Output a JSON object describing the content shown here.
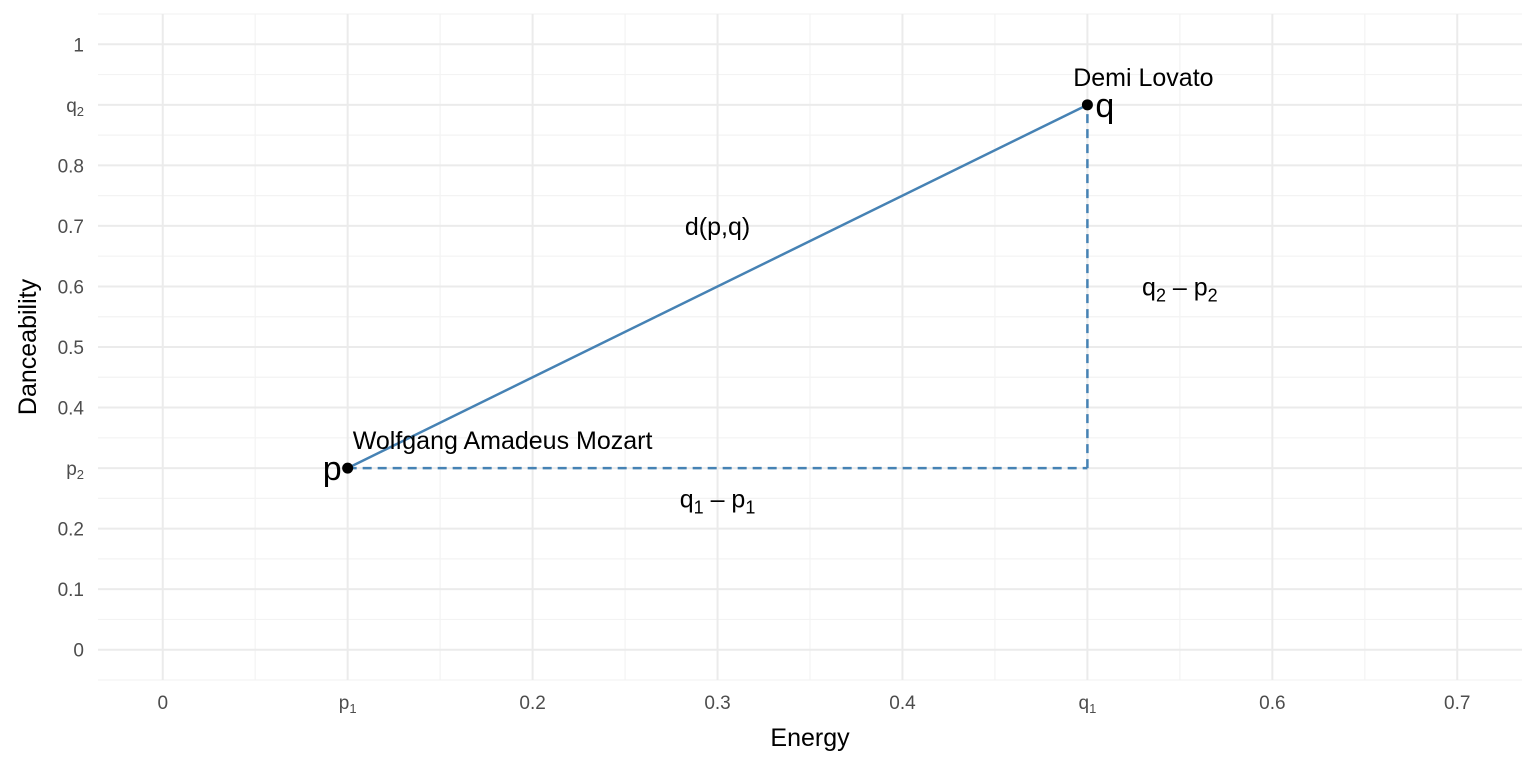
{
  "chart_data": {
    "type": "scatter",
    "title": "",
    "xlabel": "Energy",
    "ylabel": "Danceability",
    "xlim": [
      -0.035,
      0.735
    ],
    "ylim": [
      -0.05,
      1.05
    ],
    "grid": true,
    "x_ticks": [
      {
        "value": 0,
        "label": "0"
      },
      {
        "value": 0.1,
        "label": "p",
        "sub": "1"
      },
      {
        "value": 0.2,
        "label": "0.2"
      },
      {
        "value": 0.3,
        "label": "0.3"
      },
      {
        "value": 0.4,
        "label": "0.4"
      },
      {
        "value": 0.5,
        "label": "q",
        "sub": "1"
      },
      {
        "value": 0.6,
        "label": "0.6"
      },
      {
        "value": 0.7,
        "label": "0.7"
      }
    ],
    "y_ticks": [
      {
        "value": 0,
        "label": "0"
      },
      {
        "value": 0.1,
        "label": "0.1"
      },
      {
        "value": 0.2,
        "label": "0.2"
      },
      {
        "value": 0.3,
        "label": "p",
        "sub": "2"
      },
      {
        "value": 0.4,
        "label": "0.4"
      },
      {
        "value": 0.5,
        "label": "0.5"
      },
      {
        "value": 0.6,
        "label": "0.6"
      },
      {
        "value": 0.7,
        "label": "0.7"
      },
      {
        "value": 0.8,
        "label": "0.8"
      },
      {
        "value": 0.9,
        "label": "q",
        "sub": "2"
      },
      {
        "value": 1,
        "label": "1"
      }
    ],
    "points": [
      {
        "id": "p",
        "label": "p",
        "name": "Wolfgang Amadeus Mozart",
        "x": 0.1,
        "y": 0.3
      },
      {
        "id": "q",
        "label": "q",
        "name": "Demi Lovato",
        "x": 0.5,
        "y": 0.9
      }
    ],
    "line_color": "#4682b4",
    "point_color": "#000000",
    "annotations": [
      {
        "id": "distance",
        "text": "d(p,q)",
        "x": 0.3,
        "y": 0.7
      },
      {
        "id": "dx",
        "text": "q",
        "sub": "1",
        "mid": " – p",
        "sub2": "1",
        "x": 0.3,
        "y": 0.25
      },
      {
        "id": "dy",
        "text": "q",
        "sub": "2",
        "mid": " – p",
        "sub2": "2",
        "x": 0.55,
        "y": 0.6
      }
    ]
  }
}
